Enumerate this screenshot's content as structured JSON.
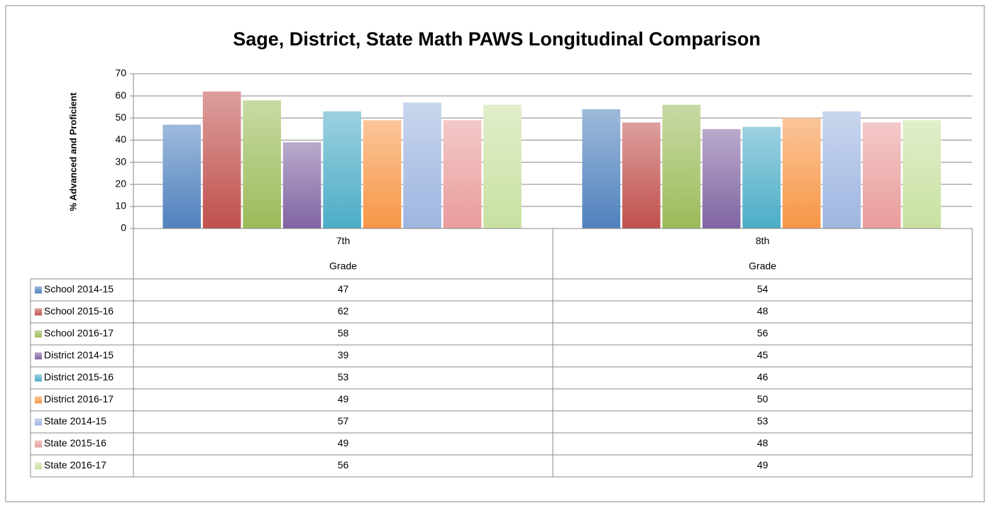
{
  "chart_data": {
    "type": "bar",
    "title": "Sage, District, State Math PAWS Longitudinal Comparison",
    "y_label": "% Advanced and Proficient",
    "categories": [
      "7th",
      "8th"
    ],
    "category_sublabels": [
      "Grade",
      "Grade"
    ],
    "ylim": [
      0,
      70
    ],
    "yticks": [
      0,
      10,
      20,
      30,
      40,
      50,
      60,
      70
    ],
    "grid": true,
    "series": [
      {
        "name": "School 2014-15",
        "color": "#4f81bd",
        "values": [
          47,
          54
        ]
      },
      {
        "name": "School 2015-16",
        "color": "#c0504d",
        "values": [
          62,
          48
        ]
      },
      {
        "name": "School 2016-17",
        "color": "#9bbb59",
        "values": [
          58,
          56
        ]
      },
      {
        "name": "District 2014-15",
        "color": "#8064a2",
        "values": [
          39,
          45
        ]
      },
      {
        "name": "District 2015-16",
        "color": "#4bacc6",
        "values": [
          53,
          46
        ]
      },
      {
        "name": "District 2016-17",
        "color": "#f79646",
        "values": [
          49,
          50
        ]
      },
      {
        "name": "State 2014-15",
        "color": "#9db5e0",
        "values": [
          57,
          53
        ]
      },
      {
        "name": "State 2015-16",
        "color": "#e99c9b",
        "values": [
          49,
          48
        ]
      },
      {
        "name": "State 2016-17",
        "color": "#c8e0a0",
        "values": [
          56,
          49
        ]
      }
    ]
  }
}
